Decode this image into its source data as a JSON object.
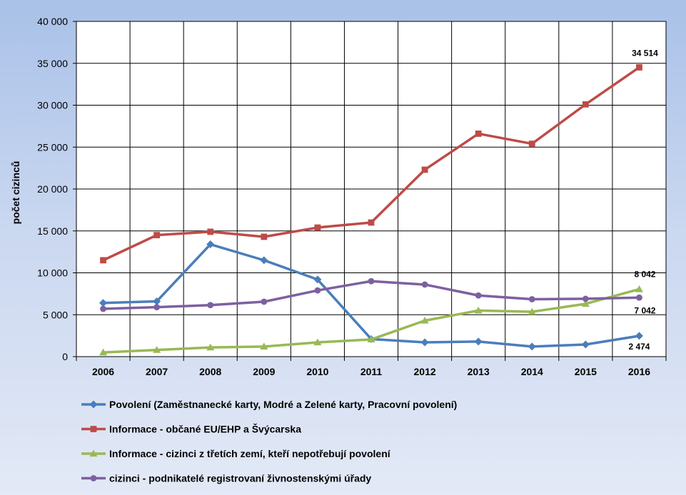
{
  "chart_data": {
    "type": "line",
    "ylabel": "počet cizinců",
    "xlabel": "",
    "ylim": [
      0,
      40000
    ],
    "ytick_labels": [
      "0",
      "5 000",
      "10 000",
      "15 000",
      "20 000",
      "25 000",
      "30 000",
      "35 000",
      "40 000"
    ],
    "grid": true,
    "legend_position": "bottom",
    "categories": [
      "2006",
      "2007",
      "2008",
      "2009",
      "2010",
      "2011",
      "2012",
      "2013",
      "2014",
      "2015",
      "2016"
    ],
    "series": [
      {
        "name": "Povolení (Zaměstnanecké karty, Modré a Zelené karty, Pracovní povolení)",
        "color": "#4a7ebb",
        "marker": "diamond",
        "values": [
          6400,
          6600,
          13400,
          11500,
          9200,
          2100,
          1700,
          1800,
          1200,
          1450,
          2474
        ],
        "end_label": "2 474"
      },
      {
        "name": "Informace - občané EU/EHP a Švýcarska",
        "color": "#be4b48",
        "marker": "square",
        "values": [
          11500,
          14500,
          14900,
          14300,
          15400,
          16000,
          22300,
          26600,
          25400,
          30100,
          34514
        ],
        "end_label": "34 514"
      },
      {
        "name": "Informace - cizinci z třetích zemí, kteří nepotřebují povolení",
        "color": "#98b954",
        "marker": "triangle",
        "values": [
          500,
          800,
          1100,
          1200,
          1700,
          2050,
          4300,
          5500,
          5350,
          6300,
          8042
        ],
        "end_label": "8 042"
      },
      {
        "name": "cizinci - podnikatelé registrovaní živnostenskými úřady",
        "color": "#7d60a0",
        "marker": "circle",
        "values": [
          5700,
          5900,
          6150,
          6550,
          7900,
          9000,
          8600,
          7300,
          6850,
          6900,
          7042
        ],
        "end_label": "7 042"
      }
    ]
  }
}
